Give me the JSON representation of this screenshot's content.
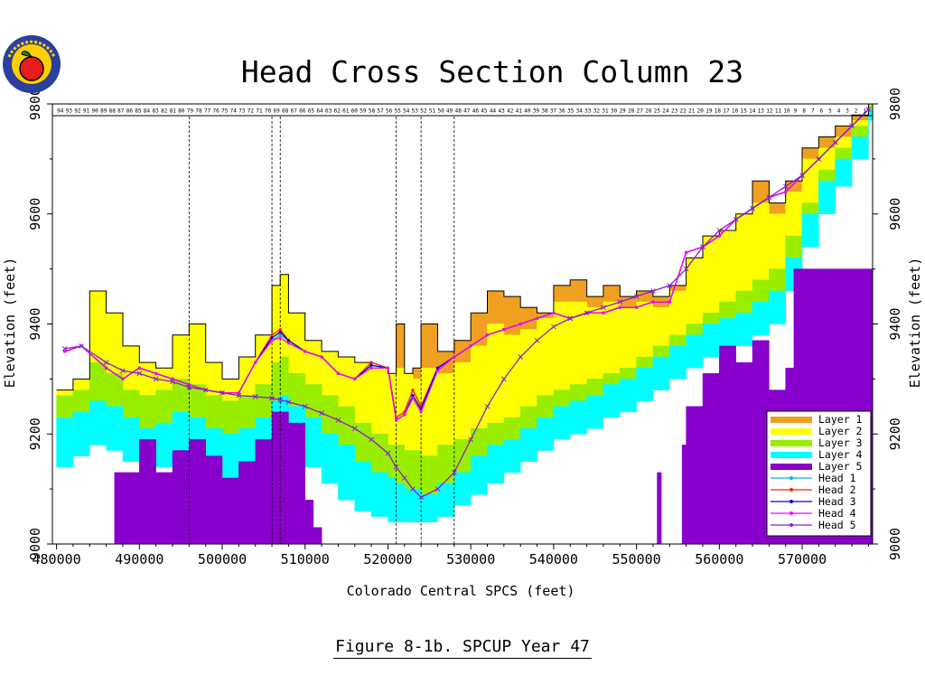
{
  "title": "Head Cross Section Column 23",
  "caption": "Figure 8-1b. SPCUP Year 47",
  "logo": {
    "ring_text": "FOREST SERVICE",
    "colors": [
      "#2a3f9e",
      "#ffcf00",
      "#e51c1c",
      "#1a8a1a"
    ]
  },
  "colors": {
    "layer1": "#f0a020",
    "layer2": "#ffff00",
    "layer3": "#99ee00",
    "layer4": "#00ffff",
    "layer5": "#8800cc",
    "head1": "#00aaff",
    "head2": "#ff2200",
    "head3": "#0000ee",
    "head4": "#ff00ff",
    "head5": "#8822cc"
  },
  "chart_data": {
    "type": "area",
    "title": "Head Cross Section Column 23",
    "xlabel": "Colorado Central SPCS (feet)",
    "ylabel": "Elevation (feet)",
    "ylabel_right": "Elevation (feet)",
    "xlim": [
      479500,
      578500
    ],
    "ylim": [
      9000,
      9800
    ],
    "x_ticks": [
      480000,
      490000,
      500000,
      510000,
      520000,
      530000,
      540000,
      550000,
      560000,
      570000
    ],
    "y_ticks": [
      9000,
      9200,
      9400,
      9600,
      9800
    ],
    "grid": false,
    "legend_position": "bottom-right",
    "legend": [
      {
        "label": "Layer  1",
        "kind": "fill",
        "color": "#f0a020"
      },
      {
        "label": "Layer  2",
        "kind": "fill",
        "color": "#ffff00"
      },
      {
        "label": "Layer  3",
        "kind": "fill",
        "color": "#99ee00"
      },
      {
        "label": "Layer  4",
        "kind": "fill",
        "color": "#00ffff"
      },
      {
        "label": "Layer  5",
        "kind": "fill",
        "color": "#8800cc"
      },
      {
        "label": "Head  1",
        "kind": "line",
        "color": "#00aaff",
        "marker": "triangle-up"
      },
      {
        "label": "Head  2",
        "kind": "line",
        "color": "#ff2200",
        "marker": "triangle-down"
      },
      {
        "label": "Head  3",
        "kind": "line",
        "color": "#0000ee",
        "marker": "square"
      },
      {
        "label": "Head  4",
        "kind": "line",
        "color": "#ff00ff",
        "marker": "dot"
      },
      {
        "label": "Head  5",
        "kind": "line",
        "color": "#8822cc",
        "marker": "x"
      }
    ],
    "vertical_markers_x": [
      496000,
      506000,
      507000,
      521000,
      524000,
      528000
    ],
    "x": [
      480000,
      482000,
      484000,
      486000,
      488000,
      490000,
      492000,
      494000,
      496000,
      498000,
      500000,
      502000,
      504000,
      506000,
      507000,
      508000,
      510000,
      512000,
      514000,
      516000,
      518000,
      520000,
      521000,
      522000,
      523000,
      524000,
      526000,
      528000,
      530000,
      532000,
      534000,
      536000,
      538000,
      540000,
      542000,
      544000,
      546000,
      548000,
      550000,
      552000,
      554000,
      556000,
      558000,
      560000,
      562000,
      564000,
      566000,
      568000,
      570000,
      572000,
      574000,
      576000,
      578000
    ],
    "surfaces": {
      "ground": [
        9280,
        9300,
        9460,
        9420,
        9360,
        9330,
        9320,
        9380,
        9400,
        9330,
        9300,
        9340,
        9380,
        9470,
        9490,
        9420,
        9370,
        9350,
        9340,
        9330,
        9320,
        9310,
        9400,
        9310,
        9320,
        9400,
        9350,
        9370,
        9420,
        9460,
        9450,
        9430,
        9420,
        9470,
        9480,
        9450,
        9470,
        9450,
        9460,
        9450,
        9470,
        9520,
        9560,
        9570,
        9600,
        9660,
        9620,
        9660,
        9720,
        9740,
        9760,
        9780,
        9800
      ],
      "layer1_bot": [
        9280,
        9300,
        9460,
        9420,
        9360,
        9330,
        9320,
        9380,
        9400,
        9330,
        9300,
        9340,
        9380,
        9470,
        9490,
        9420,
        9370,
        9350,
        9340,
        9330,
        9320,
        9310,
        9320,
        9310,
        9300,
        9320,
        9310,
        9330,
        9360,
        9400,
        9380,
        9390,
        9410,
        9440,
        9440,
        9430,
        9440,
        9430,
        9440,
        9430,
        9460,
        9520,
        9560,
        9570,
        9600,
        9620,
        9600,
        9640,
        9700,
        9720,
        9740,
        9770,
        9800
      ],
      "layer2_bot": [
        9270,
        9280,
        9330,
        9310,
        9280,
        9270,
        9280,
        9300,
        9290,
        9270,
        9260,
        9270,
        9290,
        9330,
        9340,
        9310,
        9290,
        9270,
        9250,
        9220,
        9200,
        9180,
        9180,
        9170,
        9170,
        9160,
        9180,
        9190,
        9210,
        9220,
        9230,
        9250,
        9270,
        9280,
        9290,
        9300,
        9310,
        9320,
        9340,
        9360,
        9380,
        9400,
        9420,
        9440,
        9460,
        9480,
        9500,
        9560,
        9620,
        9680,
        9720,
        9760,
        9800
      ],
      "layer3_bot": [
        9230,
        9240,
        9260,
        9250,
        9230,
        9210,
        9220,
        9240,
        9230,
        9210,
        9200,
        9210,
        9230,
        9260,
        9270,
        9250,
        9230,
        9200,
        9180,
        9150,
        9130,
        9120,
        9110,
        9100,
        9100,
        9090,
        9110,
        9130,
        9160,
        9180,
        9190,
        9210,
        9230,
        9250,
        9260,
        9270,
        9290,
        9300,
        9320,
        9340,
        9360,
        9380,
        9400,
        9410,
        9420,
        9440,
        9460,
        9520,
        9600,
        9660,
        9700,
        9740,
        9790
      ],
      "layer4_bot": [
        9140,
        9160,
        9180,
        9170,
        9150,
        9130,
        9140,
        9160,
        9150,
        9130,
        9120,
        9130,
        9150,
        9170,
        9180,
        9160,
        9140,
        9110,
        9080,
        9060,
        9050,
        9040,
        9040,
        9040,
        9040,
        9040,
        9050,
        9070,
        9090,
        9110,
        9130,
        9150,
        9170,
        9190,
        9200,
        9210,
        9230,
        9240,
        9260,
        9280,
        9300,
        9320,
        9340,
        9350,
        9360,
        9380,
        9400,
        9460,
        9540,
        9600,
        9650,
        9700,
        9770
      ],
      "layer5_bot": [
        9000,
        9000,
        9000,
        9000,
        9000,
        9000,
        9000,
        9000,
        9000,
        9000,
        9000,
        9000,
        9000,
        9000,
        9000,
        9000,
        9000,
        9000,
        9000,
        9000,
        9000,
        9000,
        9000,
        9000,
        9000,
        9000,
        9000,
        9000,
        9000,
        9000,
        9000,
        9000,
        9000,
        9000,
        9000,
        9000,
        9000,
        9000,
        9000,
        9000,
        9000,
        9000,
        9000,
        9000,
        9000,
        9000,
        9000,
        9000,
        9000,
        9000,
        9000,
        9000,
        9000
      ]
    },
    "layer5_top": {
      "x": [
        480000,
        486000,
        487000,
        490000,
        492000,
        494000,
        496000,
        498000,
        500000,
        502000,
        504000,
        506000,
        508000,
        510000,
        511000,
        512000,
        550000,
        552000,
        552500,
        553000,
        555000,
        555500,
        556000,
        558000,
        560000,
        562000,
        564000,
        566000,
        568000,
        569000,
        578000
      ],
      "y": [
        9000,
        9000,
        9130,
        9190,
        9130,
        9170,
        9190,
        9160,
        9120,
        9150,
        9190,
        9240,
        9220,
        9080,
        9030,
        9000,
        9000,
        9000,
        9130,
        9000,
        9000,
        9180,
        9250,
        9310,
        9360,
        9330,
        9370,
        9280,
        9320,
        9500,
        9500
      ]
    },
    "heads": {
      "x": [
        481000,
        483000,
        486000,
        488000,
        490000,
        492000,
        494000,
        496000,
        498000,
        500000,
        502000,
        504000,
        506000,
        507000,
        508000,
        510000,
        512000,
        514000,
        516000,
        518000,
        520000,
        521000,
        522000,
        523000,
        524000,
        526000,
        528000,
        530000,
        532000,
        534000,
        536000,
        538000,
        540000,
        542000,
        544000,
        546000,
        548000,
        550000,
        552000,
        554000,
        556000,
        558000,
        560000,
        562000,
        564000,
        566000,
        568000,
        570000,
        572000,
        574000,
        576000,
        578000
      ],
      "head1": [
        9350,
        9360,
        9320,
        9300,
        9320,
        9310,
        9300,
        9290,
        9280,
        9275,
        9275,
        9330,
        9370,
        9380,
        9370,
        9350,
        9340,
        9310,
        9300,
        9330,
        9320,
        9230,
        9240,
        9280,
        9250,
        9320,
        9340,
        9360,
        9380,
        9390,
        9400,
        9410,
        9420,
        9410,
        9420,
        9420,
        9430,
        9430,
        9440,
        9440,
        9530,
        9540,
        9560,
        9590,
        9610,
        9630,
        9640,
        9670,
        9700,
        9730,
        9760,
        9790
      ],
      "head2": [
        9350,
        9360,
        9320,
        9300,
        9320,
        9310,
        9300,
        9290,
        9280,
        9275,
        9275,
        9330,
        9380,
        9390,
        9370,
        9350,
        9340,
        9310,
        9300,
        9330,
        9320,
        9230,
        9240,
        9280,
        9250,
        9320,
        9340,
        9360,
        9380,
        9390,
        9400,
        9410,
        9420,
        9410,
        9420,
        9420,
        9430,
        9430,
        9440,
        9440,
        9530,
        9540,
        9560,
        9590,
        9610,
        9630,
        9640,
        9670,
        9700,
        9730,
        9760,
        9790
      ],
      "head3": [
        9350,
        9360,
        9320,
        9300,
        9320,
        9310,
        9300,
        9290,
        9280,
        9275,
        9275,
        9330,
        9375,
        9385,
        9370,
        9350,
        9340,
        9310,
        9300,
        9325,
        9320,
        9225,
        9235,
        9270,
        9245,
        9320,
        9340,
        9360,
        9380,
        9390,
        9400,
        9410,
        9420,
        9410,
        9420,
        9420,
        9430,
        9430,
        9440,
        9440,
        9530,
        9540,
        9560,
        9590,
        9610,
        9630,
        9640,
        9670,
        9700,
        9730,
        9760,
        9790
      ],
      "head4": [
        9350,
        9360,
        9320,
        9300,
        9320,
        9310,
        9300,
        9290,
        9280,
        9275,
        9275,
        9330,
        9370,
        9375,
        9365,
        9350,
        9340,
        9310,
        9300,
        9320,
        9320,
        9225,
        9235,
        9265,
        9240,
        9315,
        9340,
        9360,
        9380,
        9390,
        9400,
        9410,
        9420,
        9410,
        9420,
        9420,
        9430,
        9430,
        9440,
        9440,
        9530,
        9540,
        9560,
        9590,
        9610,
        9630,
        9640,
        9670,
        9700,
        9730,
        9760,
        9790
      ],
      "head5": [
        9355,
        9360,
        9330,
        9315,
        9310,
        9300,
        9295,
        9285,
        9280,
        9275,
        9270,
        9268,
        9265,
        9262,
        9258,
        9250,
        9238,
        9225,
        9210,
        9190,
        9165,
        9140,
        9120,
        9100,
        9085,
        9100,
        9130,
        9190,
        9250,
        9300,
        9340,
        9370,
        9395,
        9410,
        9420,
        9430,
        9440,
        9450,
        9460,
        9470,
        9500,
        9540,
        9570,
        9590,
        9610,
        9630,
        9650,
        9670,
        9700,
        9730,
        9760,
        9790
      ]
    },
    "top_strip_labels": [
      "94",
      "93",
      "92",
      "91",
      "90",
      "89",
      "88",
      "87",
      "86",
      "85",
      "84",
      "83",
      "82",
      "81",
      "80",
      "79",
      "78",
      "77",
      "76",
      "75",
      "74",
      "73",
      "72",
      "71",
      "70",
      "69",
      "68",
      "67",
      "66",
      "65",
      "64",
      "63",
      "62",
      "61",
      "60",
      "59",
      "58",
      "57",
      "56",
      "55",
      "54",
      "53",
      "52",
      "51",
      "50",
      "49",
      "48",
      "47",
      "46",
      "45",
      "44",
      "43",
      "42",
      "41",
      "40",
      "39",
      "38",
      "37",
      "36",
      "35",
      "34",
      "33",
      "32",
      "31",
      "30",
      "29",
      "28",
      "27",
      "26",
      "25",
      "24",
      "23",
      "22",
      "21",
      "20",
      "19",
      "18",
      "17",
      "16",
      "15",
      "14",
      "13",
      "12",
      "11",
      "10",
      "9",
      "8",
      "7",
      "6",
      "5",
      "4",
      "3",
      "2",
      "1"
    ]
  }
}
